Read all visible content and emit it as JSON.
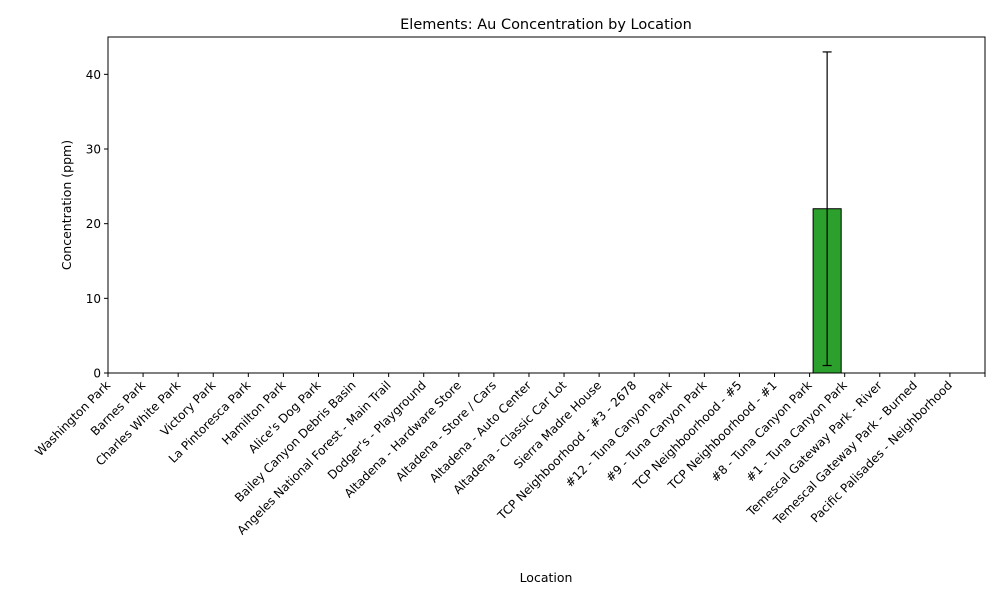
{
  "chart_data": {
    "type": "bar",
    "title": "Elements: Au Concentration by Location",
    "xlabel": "Location",
    "ylabel": "Concentration (ppm)",
    "ylim": [
      0,
      45
    ],
    "yticks": [
      0,
      10,
      20,
      30,
      40
    ],
    "grid": false,
    "bar_color": "#2ca02c",
    "categories": [
      "Washington Park",
      "Barnes Park",
      "Charles White Park",
      "Victory Park",
      "La Pintoresca Park",
      "Hamilton Park",
      "Alice's Dog Park",
      "Bailey Canyon Debris Basin",
      "Angeles National Forest - Main Trail",
      "Dodger's - Playground",
      "Altadena - Hardware Store",
      "Altadena - Store / Cars",
      "Altadena - Auto Center",
      "Altadena - Classic Car Lot",
      "Sierra Madre House",
      "TCP Neighboorhood - #3 - 2678",
      "#12 - Tuna Canyon Park",
      "#9 - Tuna Canyon Park",
      "TCP Neighboorhood - #5",
      "TCP Neighboorhood - #1",
      "#8 - Tuna Canyon Park",
      "#1 - Tuna Canyon Park",
      "Temescal Gateway Park - River",
      "Temescal Gateway Park - Burned",
      "Pacific Palisades - Neighborhood"
    ],
    "values": [
      0,
      0,
      0,
      0,
      0,
      0,
      0,
      0,
      0,
      0,
      0,
      0,
      0,
      0,
      0,
      0,
      0,
      0,
      0,
      0,
      22,
      0,
      0,
      0,
      0
    ],
    "error_low": [
      0,
      0,
      0,
      0,
      0,
      0,
      0,
      0,
      0,
      0,
      0,
      0,
      0,
      0,
      0,
      0,
      0,
      0,
      0,
      0,
      21,
      0,
      0,
      0,
      0
    ],
    "error_high": [
      0,
      0,
      0,
      0,
      0,
      0,
      0,
      0,
      0,
      0,
      0,
      0,
      0,
      0,
      0,
      0,
      0,
      0,
      0,
      0,
      21,
      0,
      0,
      0,
      0
    ]
  }
}
